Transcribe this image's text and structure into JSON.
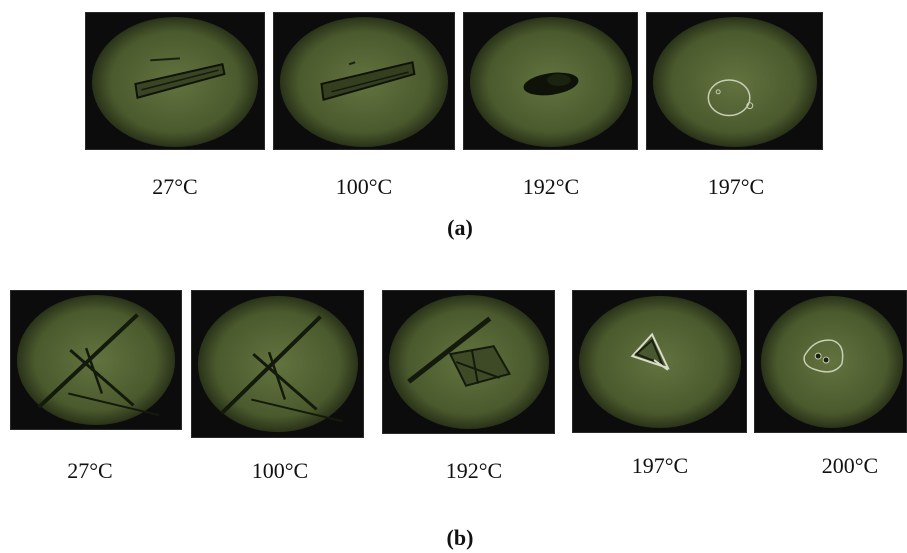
{
  "figure": {
    "row_a": {
      "label": "(a)",
      "frames": [
        {
          "temperature": "27°C",
          "state": "needle-crystal"
        },
        {
          "temperature": "100°C",
          "state": "needle-crystal"
        },
        {
          "temperature": "192°C",
          "state": "darkened-crystal"
        },
        {
          "temperature": "197°C",
          "state": "melt-droplet"
        }
      ]
    },
    "row_b": {
      "label": "(b)",
      "frames": [
        {
          "temperature": "27°C",
          "state": "crossed-needles"
        },
        {
          "temperature": "100°C",
          "state": "crossed-needles"
        },
        {
          "temperature": "192°C",
          "state": "partially-melted"
        },
        {
          "temperature": "197°C",
          "state": "triangular-residue"
        },
        {
          "temperature": "200°C",
          "state": "melt-droplet"
        }
      ]
    },
    "colors": {
      "field_center": "#5b6b3a",
      "field_edge": "#1b2110",
      "frame_background": "#0c0c0c"
    }
  }
}
